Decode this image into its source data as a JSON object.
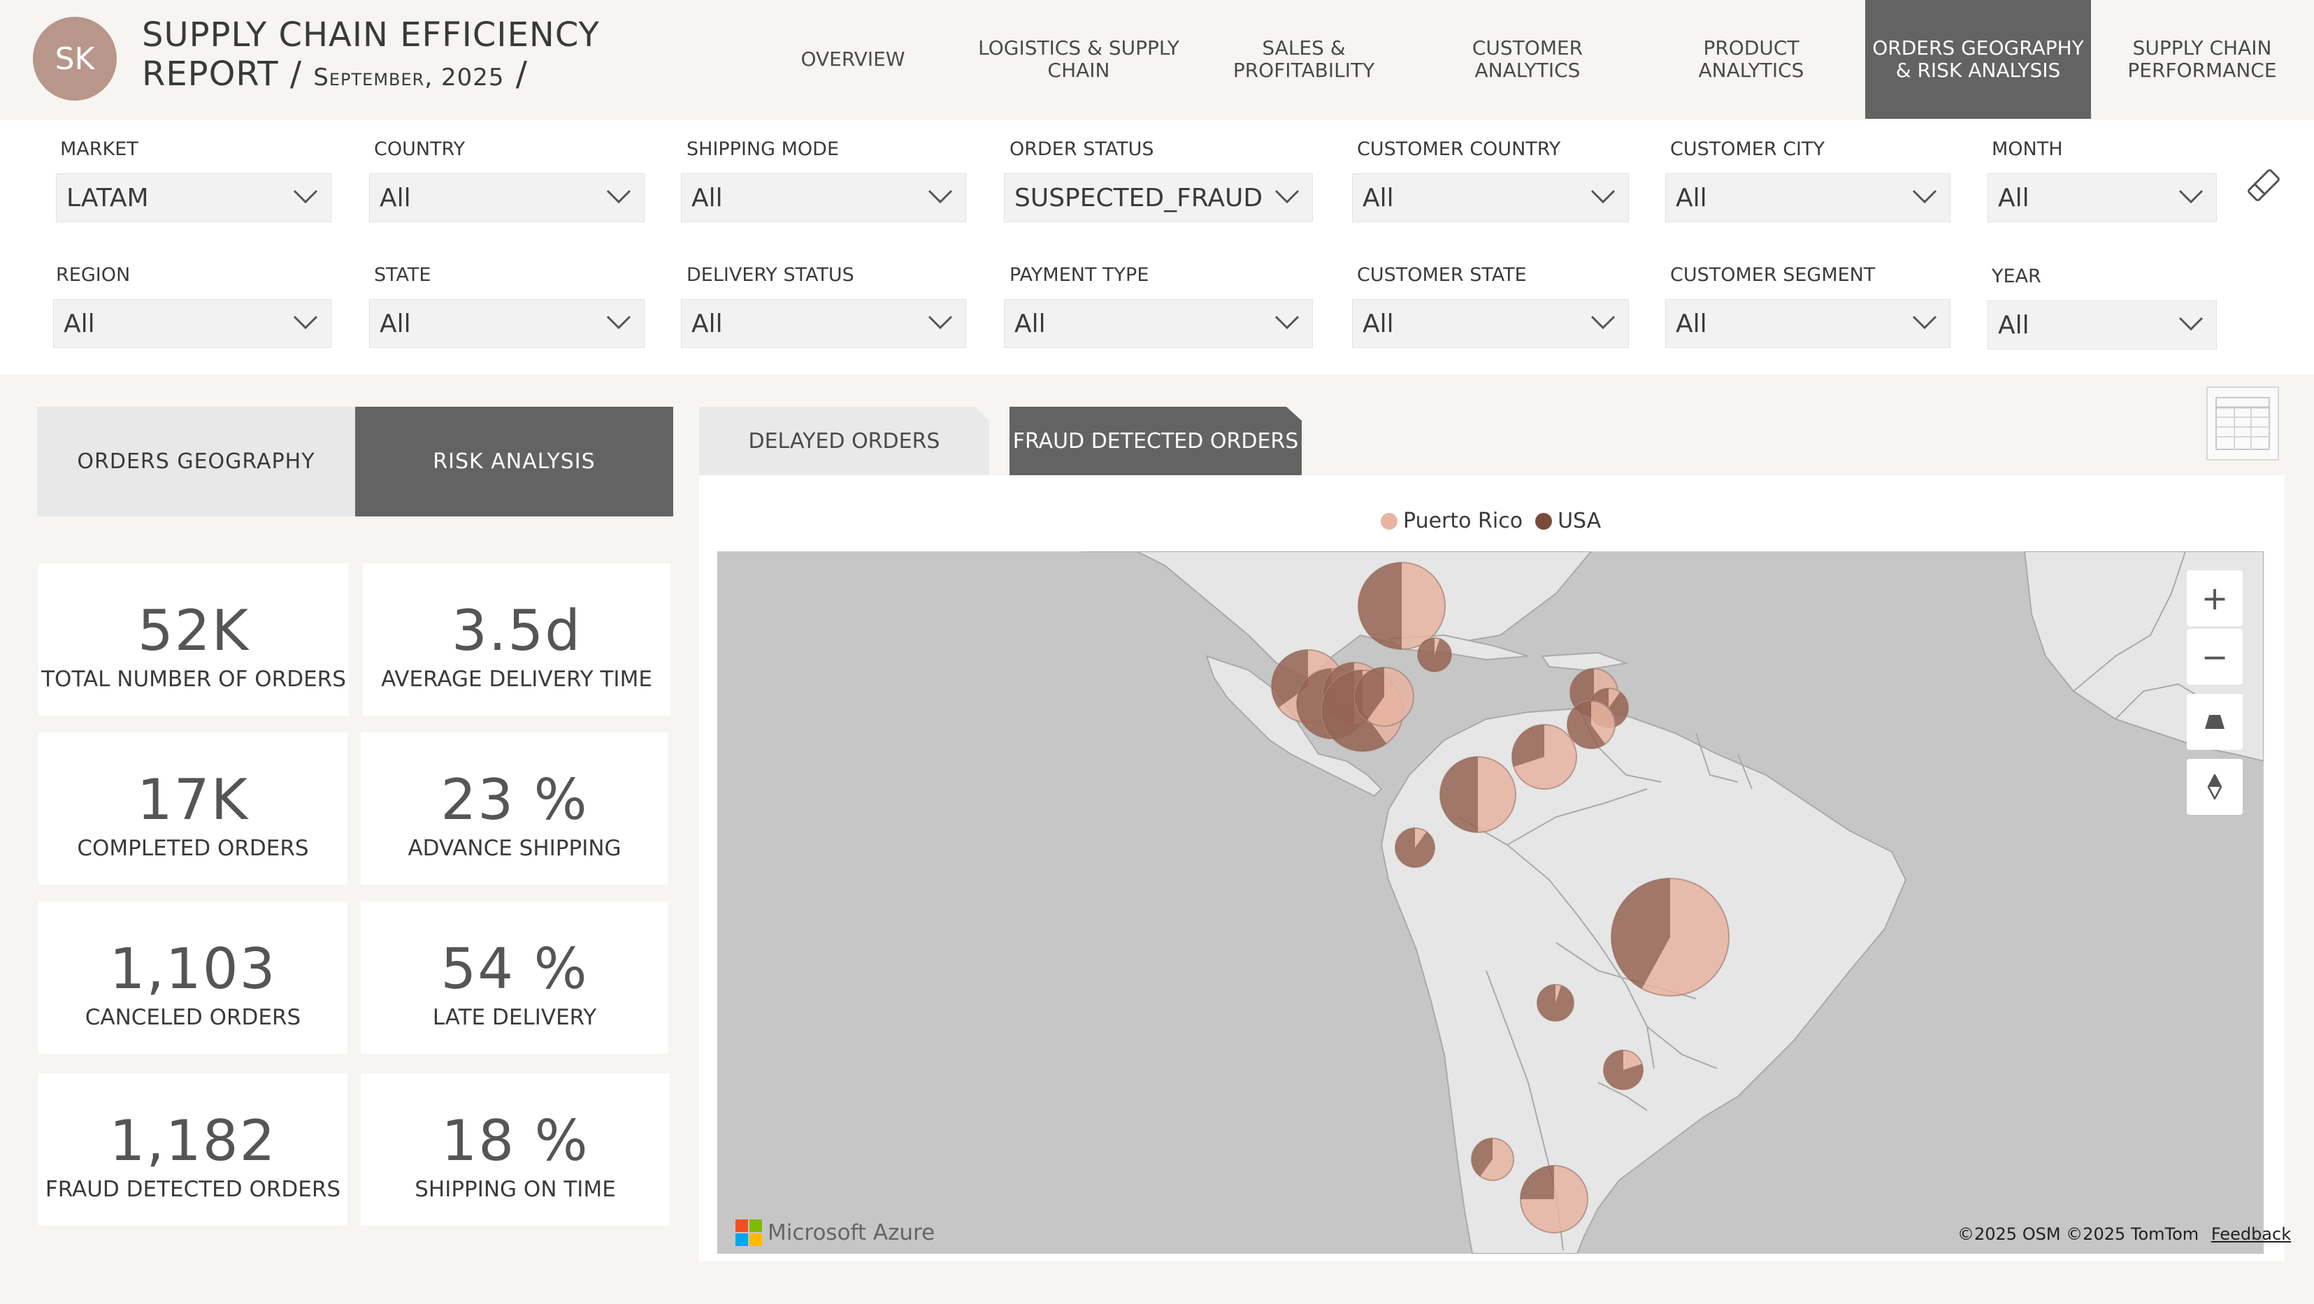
{
  "header": {
    "avatar": "SK",
    "title_line1": "SUPPLY CHAIN EFFICIENCY",
    "title_line2": "REPORT /",
    "subtitle": "September, 2025",
    "title_slash": "/"
  },
  "nav": [
    {
      "label": "OVERVIEW"
    },
    {
      "label": "LOGISTICS & SUPPLY CHAIN"
    },
    {
      "label": "SALES & PROFITABILITY"
    },
    {
      "label": "CUSTOMER ANALYTICS"
    },
    {
      "label": "PRODUCT ANALYTICS"
    },
    {
      "label": "ORDERS GEOGRAPHY & RISK ANALYSIS",
      "active": true
    },
    {
      "label": "SUPPLY CHAIN PERFORMANCE"
    }
  ],
  "filters": {
    "market": {
      "label": "MARKET",
      "value": "LATAM"
    },
    "country": {
      "label": "COUNTRY",
      "value": "All"
    },
    "shipping_mode": {
      "label": "SHIPPING MODE",
      "value": "All"
    },
    "order_status": {
      "label": "ORDER STATUS",
      "value": "SUSPECTED_FRAUD"
    },
    "customer_country": {
      "label": "CUSTOMER COUNTRY",
      "value": "All"
    },
    "customer_city": {
      "label": "CUSTOMER CITY",
      "value": "All"
    },
    "month": {
      "label": "MONTH",
      "value": "All"
    },
    "region": {
      "label": "REGION",
      "value": "All"
    },
    "state": {
      "label": "STATE",
      "value": "All"
    },
    "delivery_status": {
      "label": "DELIVERY STATUS",
      "value": "All"
    },
    "payment_type": {
      "label": "PAYMENT TYPE",
      "value": "All"
    },
    "customer_state": {
      "label": "CUSTOMER STATE",
      "value": "All"
    },
    "customer_segment": {
      "label": "CUSTOMER SEGMENT",
      "value": "All"
    },
    "year": {
      "label": "YEAR",
      "value": "All"
    }
  },
  "left_tabs": {
    "geography": "ORDERS GEOGRAPHY",
    "risk": "RISK ANALYSIS"
  },
  "kpis": [
    {
      "value": "52K",
      "label": "TOTAL NUMBER OF ORDERS"
    },
    {
      "value": "3.5d",
      "label": "AVERAGE DELIVERY TIME"
    },
    {
      "value": "17K",
      "label": "COMPLETED ORDERS"
    },
    {
      "value": "23 %",
      "label": "ADVANCE SHIPPING"
    },
    {
      "value": "1,103",
      "label": "CANCELED ORDERS"
    },
    {
      "value": "54 %",
      "label": "LATE DELIVERY"
    },
    {
      "value": "1,182",
      "label": "FRAUD DETECTED ORDERS"
    },
    {
      "value": "18 %",
      "label": "SHIPPING ON TIME"
    }
  ],
  "map_tabs": {
    "delayed": "DELAYED ORDERS",
    "fraud": "FRAUD DETECTED ORDERS"
  },
  "legend": {
    "puerto_rico": "Puerto Rico",
    "usa": "USA"
  },
  "colors": {
    "puerto_rico": "#e8b4a2",
    "usa": "#7a4a3a",
    "active_tab": "#636363",
    "avatar": "#b8968a"
  },
  "map_controls": {
    "zoom_in": "+",
    "zoom_out": "−"
  },
  "map_brand": "Microsoft Azure",
  "attribution": {
    "text": "©2025 OSM ©2025 TomTom",
    "feedback": "Feedback"
  },
  "icons": [
    "eraser-icon",
    "table-view-icon",
    "zoom-in-icon",
    "zoom-out-icon",
    "pitch-icon",
    "compass-icon",
    "chevron-down-icon",
    "microsoft-logo-icon"
  ]
}
